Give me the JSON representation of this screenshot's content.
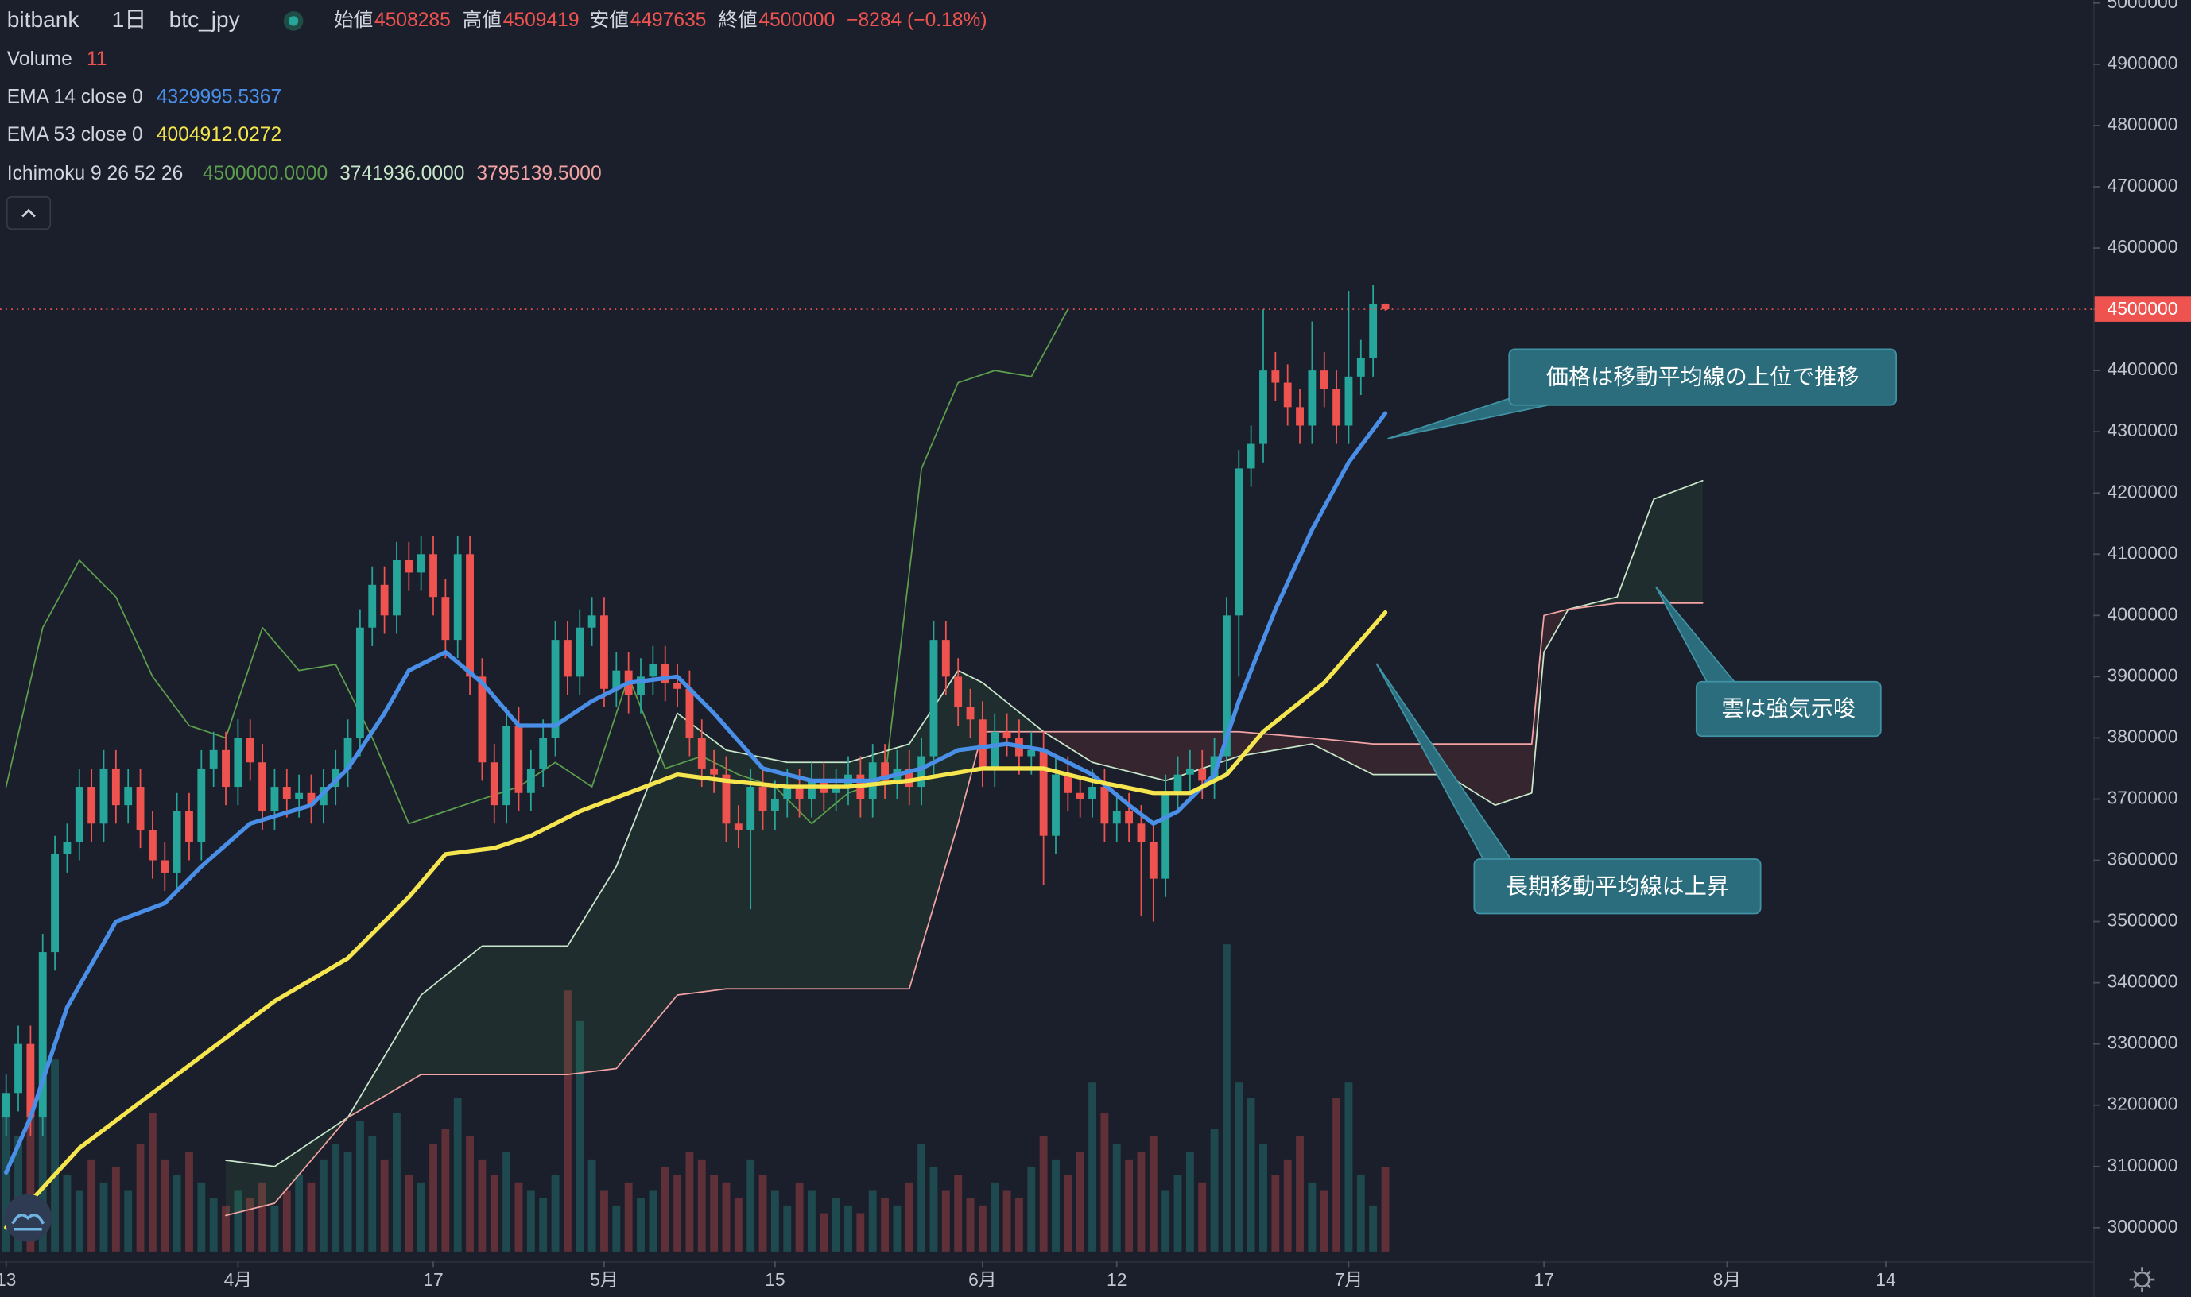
{
  "chart_data": {
    "type": "candlestick",
    "header": {
      "exchange": "bitbank",
      "interval": "1日",
      "symbol": "btc_jpy",
      "labels": [
        "始値",
        "高値",
        "安値",
        "終値"
      ],
      "change": "−8284 (−0.18%)"
    },
    "xlim": [
      -0.5,
      171
    ],
    "xticks": [
      {
        "value": 0,
        "label": "13"
      },
      {
        "value": 19,
        "label": "4月"
      },
      {
        "value": 35,
        "label": "17"
      },
      {
        "value": 49,
        "label": "5月"
      },
      {
        "value": 63,
        "label": "15"
      },
      {
        "value": 80,
        "label": "6月"
      },
      {
        "value": 91,
        "label": "12"
      },
      {
        "value": 110,
        "label": "7月"
      },
      {
        "value": 126,
        "label": "17"
      },
      {
        "value": 141,
        "label": "8月"
      },
      {
        "value": 154,
        "label": "14"
      }
    ],
    "ylim": [
      2945000,
      5005000
    ],
    "yticks": [
      3000000,
      3100000,
      3200000,
      3300000,
      3400000,
      3500000,
      3600000,
      3700000,
      3800000,
      3900000,
      4000000,
      4100000,
      4200000,
      4300000,
      4400000,
      4500000,
      4600000,
      4700000,
      4800000,
      4900000,
      5000000
    ],
    "grid": false,
    "up_color": "#26a69a",
    "down_color": "#ef5350",
    "candles": {
      "open": [
        3180000,
        3220000,
        3300000,
        3180000,
        3450000,
        3610000,
        3630000,
        3720000,
        3660000,
        3750000,
        3690000,
        3720000,
        3650000,
        3600000,
        3580000,
        3680000,
        3630000,
        3750000,
        3780000,
        3720000,
        3800000,
        3760000,
        3680000,
        3720000,
        3700000,
        3710000,
        3690000,
        3720000,
        3750000,
        3800000,
        3980000,
        4050000,
        4000000,
        4090000,
        4070000,
        4100000,
        4030000,
        3960000,
        4100000,
        3900000,
        3760000,
        3690000,
        3820000,
        3710000,
        3750000,
        3800000,
        3960000,
        3900000,
        3980000,
        4000000,
        3880000,
        3910000,
        3870000,
        3900000,
        3920000,
        3890000,
        3880000,
        3800000,
        3750000,
        3740000,
        3660000,
        3650000,
        3720000,
        3680000,
        3700000,
        3720000,
        3700000,
        3730000,
        3710000,
        3720000,
        3740000,
        3700000,
        3760000,
        3730000,
        3750000,
        3720000,
        3770000,
        3960000,
        3900000,
        3850000,
        3830000,
        3750000,
        3810000,
        3800000,
        3770000,
        3780000,
        3640000,
        3740000,
        3710000,
        3700000,
        3720000,
        3660000,
        3680000,
        3660000,
        3630000,
        3570000,
        3710000,
        3740000,
        3750000,
        3730000,
        3770000,
        4000000,
        4240000,
        4280000,
        4400000,
        4380000,
        4340000,
        4310000,
        4400000,
        4370000,
        4310000,
        4390000,
        4420000,
        4508285
      ],
      "high": [
        3250000,
        3330000,
        3330000,
        3480000,
        3640000,
        3660000,
        3750000,
        3750000,
        3780000,
        3780000,
        3750000,
        3750000,
        3680000,
        3630000,
        3710000,
        3710000,
        3780000,
        3810000,
        3810000,
        3830000,
        3830000,
        3790000,
        3750000,
        3750000,
        3740000,
        3740000,
        3750000,
        3780000,
        3830000,
        4010000,
        4080000,
        4080000,
        4120000,
        4120000,
        4130000,
        4130000,
        4060000,
        4130000,
        4130000,
        3930000,
        3790000,
        3850000,
        3850000,
        3780000,
        3830000,
        3990000,
        3990000,
        4010000,
        4030000,
        4030000,
        3940000,
        3940000,
        3930000,
        3950000,
        3950000,
        3920000,
        3910000,
        3830000,
        3780000,
        3770000,
        3690000,
        3750000,
        3750000,
        3730000,
        3750000,
        3750000,
        3760000,
        3760000,
        3750000,
        3770000,
        3770000,
        3790000,
        3790000,
        3780000,
        3780000,
        3800000,
        3990000,
        3990000,
        3930000,
        3880000,
        3860000,
        3840000,
        3840000,
        3830000,
        3810000,
        3810000,
        3770000,
        3770000,
        3740000,
        3750000,
        3750000,
        3710000,
        3710000,
        3690000,
        3660000,
        3740000,
        3770000,
        3780000,
        3780000,
        3800000,
        4030000,
        4270000,
        4310000,
        4500000,
        4430000,
        4410000,
        4370000,
        4480000,
        4430000,
        4400000,
        4530000,
        4450000,
        4540000,
        4509419
      ],
      "low": [
        3150000,
        3190000,
        3150000,
        3150000,
        3420000,
        3580000,
        3600000,
        3630000,
        3630000,
        3660000,
        3660000,
        3620000,
        3570000,
        3550000,
        3550000,
        3600000,
        3600000,
        3720000,
        3690000,
        3690000,
        3730000,
        3650000,
        3650000,
        3670000,
        3670000,
        3660000,
        3660000,
        3690000,
        3720000,
        3770000,
        3950000,
        3970000,
        3970000,
        4040000,
        4040000,
        4000000,
        3930000,
        3930000,
        3870000,
        3730000,
        3660000,
        3660000,
        3680000,
        3680000,
        3720000,
        3770000,
        3870000,
        3870000,
        3950000,
        3850000,
        3850000,
        3840000,
        3840000,
        3870000,
        3860000,
        3850000,
        3770000,
        3720000,
        3710000,
        3630000,
        3620000,
        3520000,
        3650000,
        3650000,
        3670000,
        3670000,
        3670000,
        3680000,
        3680000,
        3690000,
        3670000,
        3670000,
        3700000,
        3700000,
        3690000,
        3690000,
        3740000,
        3870000,
        3820000,
        3800000,
        3720000,
        3720000,
        3770000,
        3740000,
        3740000,
        3560000,
        3610000,
        3680000,
        3670000,
        3670000,
        3630000,
        3630000,
        3630000,
        3510000,
        3500000,
        3540000,
        3680000,
        3710000,
        3700000,
        3700000,
        3740000,
        3900000,
        4210000,
        4250000,
        4350000,
        4310000,
        4280000,
        4280000,
        4340000,
        4280000,
        4280000,
        4360000,
        4390000,
        4497635
      ],
      "close": [
        3220000,
        3300000,
        3180000,
        3450000,
        3610000,
        3630000,
        3720000,
        3660000,
        3750000,
        3690000,
        3720000,
        3650000,
        3600000,
        3580000,
        3680000,
        3630000,
        3750000,
        3780000,
        3720000,
        3800000,
        3760000,
        3680000,
        3720000,
        3700000,
        3710000,
        3690000,
        3720000,
        3750000,
        3800000,
        3980000,
        4050000,
        4000000,
        4090000,
        4070000,
        4100000,
        4030000,
        3960000,
        4100000,
        3900000,
        3760000,
        3690000,
        3820000,
        3710000,
        3750000,
        3800000,
        3960000,
        3900000,
        3980000,
        4000000,
        3880000,
        3910000,
        3870000,
        3900000,
        3920000,
        3890000,
        3880000,
        3800000,
        3750000,
        3740000,
        3660000,
        3650000,
        3720000,
        3680000,
        3700000,
        3720000,
        3700000,
        3730000,
        3710000,
        3720000,
        3740000,
        3700000,
        3760000,
        3730000,
        3750000,
        3720000,
        3770000,
        3960000,
        3900000,
        3850000,
        3830000,
        3750000,
        3810000,
        3800000,
        3770000,
        3780000,
        3640000,
        3740000,
        3710000,
        3700000,
        3720000,
        3660000,
        3680000,
        3660000,
        3630000,
        3570000,
        3710000,
        3740000,
        3750000,
        3730000,
        3770000,
        4000000,
        4240000,
        4280000,
        4400000,
        4380000,
        4340000,
        4310000,
        4400000,
        4370000,
        4310000,
        4390000,
        4420000,
        4508285,
        4500000
      ]
    },
    "volume": {
      "name": "Volume",
      "up_color": "rgba(38,166,154,0.32)",
      "down_color": "rgba(239,83,80,0.32)",
      "values": [
        20,
        15,
        22,
        28,
        25,
        10,
        8,
        12,
        9,
        11,
        8,
        14,
        18,
        12,
        10,
        13,
        9,
        7,
        6,
        8,
        7,
        9,
        6,
        8,
        10,
        9,
        12,
        14,
        13,
        17,
        15,
        12,
        18,
        10,
        9,
        14,
        16,
        20,
        15,
        12,
        10,
        13,
        9,
        8,
        7,
        10,
        34,
        30,
        12,
        8,
        6,
        9,
        7,
        8,
        11,
        10,
        13,
        12,
        10,
        9,
        7,
        12,
        10,
        8,
        6,
        9,
        8,
        5,
        7,
        6,
        5,
        8,
        7,
        6,
        9,
        14,
        11,
        8,
        10,
        7,
        6,
        9,
        8,
        7,
        11,
        15,
        12,
        10,
        13,
        22,
        18,
        14,
        12,
        13,
        15,
        8,
        10,
        13,
        9,
        16,
        40,
        22,
        20,
        14,
        10,
        12,
        15,
        9,
        8,
        20,
        22,
        10,
        6,
        11
      ]
    },
    "lines": [
      {
        "name": "EMA 14 close 0",
        "color": "#4a8fe7",
        "width": 3,
        "x": [
          0,
          2,
          5,
          9,
          13,
          16,
          20,
          25,
          28,
          31,
          33,
          36,
          39,
          42,
          45,
          48,
          51,
          55,
          58,
          62,
          66,
          71,
          75,
          78,
          82,
          85,
          89,
          92,
          94,
          96,
          99,
          101,
          104,
          107,
          110,
          113
        ],
        "values": [
          3090000,
          3180000,
          3360000,
          3500000,
          3530000,
          3590000,
          3660000,
          3690000,
          3750000,
          3840000,
          3910000,
          3940000,
          3890000,
          3820000,
          3820000,
          3860000,
          3890000,
          3900000,
          3840000,
          3750000,
          3730000,
          3730000,
          3750000,
          3780000,
          3790000,
          3780000,
          3740000,
          3690000,
          3660000,
          3680000,
          3740000,
          3860000,
          4010000,
          4140000,
          4250000,
          4329995.5367
        ]
      },
      {
        "name": "EMA 53 close 0",
        "color": "#f5e64f",
        "width": 3,
        "x": [
          0,
          6,
          14,
          22,
          28,
          33,
          36,
          40,
          43,
          47,
          51,
          55,
          59,
          64,
          69,
          74,
          80,
          85,
          89,
          94,
          97,
          100,
          103,
          108,
          113
        ],
        "values": [
          3000000,
          3130000,
          3250000,
          3370000,
          3440000,
          3540000,
          3610000,
          3620000,
          3640000,
          3680000,
          3710000,
          3740000,
          3730000,
          3720000,
          3720000,
          3730000,
          3750000,
          3750000,
          3730000,
          3710000,
          3710000,
          3740000,
          3810000,
          3890000,
          4004912.0272
        ]
      }
    ],
    "ichimoku": {
      "name": "Ichimoku 9 26 52 26",
      "cloud_colors": [
        "rgba(76,175,80,0.10)",
        "rgba(239,83,80,0.12)"
      ],
      "lines": [
        {
          "color": "#5c9e4c",
          "value_label": "4500000.0000",
          "x": [
            0,
            3,
            6,
            9,
            12,
            15,
            18,
            21,
            24,
            27,
            30,
            33,
            36,
            39,
            42,
            45,
            48,
            51,
            54,
            57,
            60,
            63,
            66,
            69,
            72,
            75,
            78,
            81,
            84,
            87
          ],
          "values": [
            3720000,
            3980000,
            4090000,
            4030000,
            3900000,
            3820000,
            3800000,
            3980000,
            3910000,
            3920000,
            3800000,
            3660000,
            3680000,
            3700000,
            3720000,
            3760000,
            3720000,
            3900000,
            3750000,
            3770000,
            3740000,
            3720000,
            3660000,
            3710000,
            3730000,
            4240000,
            4380000,
            4400000,
            4390000,
            4500000
          ]
        },
        {
          "color": "#c8e6c9",
          "value_label": "3741936.0000",
          "x": [
            18,
            22,
            28,
            34,
            39,
            46,
            50,
            55,
            59,
            64,
            69,
            74,
            78,
            80,
            85,
            89,
            95,
            101,
            107,
            112,
            118,
            122,
            125,
            126,
            128,
            132,
            135,
            139
          ],
          "values": [
            3110000,
            3100000,
            3180000,
            3380000,
            3460000,
            3460000,
            3590000,
            3840000,
            3780000,
            3760000,
            3760000,
            3790000,
            3910000,
            3890000,
            3810000,
            3760000,
            3730000,
            3770000,
            3790000,
            3740000,
            3740000,
            3690000,
            3710000,
            3940000,
            4010000,
            4030000,
            4190000,
            4220000
          ]
        },
        {
          "color": "#f2a3a3",
          "value_label": "3795139.5000",
          "x": [
            18,
            22,
            28,
            34,
            39,
            46,
            50,
            55,
            59,
            64,
            69,
            74,
            78,
            80,
            85,
            89,
            95,
            101,
            107,
            112,
            118,
            122,
            125,
            126,
            128,
            132,
            135,
            139
          ],
          "values": [
            3020000,
            3040000,
            3180000,
            3250000,
            3250000,
            3250000,
            3260000,
            3380000,
            3390000,
            3390000,
            3390000,
            3390000,
            3660000,
            3810000,
            3810000,
            3810000,
            3810000,
            3810000,
            3800000,
            3790000,
            3790000,
            3790000,
            3790000,
            4000000,
            4010000,
            4020000,
            4020000,
            4020000
          ]
        }
      ]
    },
    "annotations": [
      "価格は移動平均線の上位で推移",
      "雲は強気示唆",
      "長期移動平均線は上昇"
    ]
  }
}
